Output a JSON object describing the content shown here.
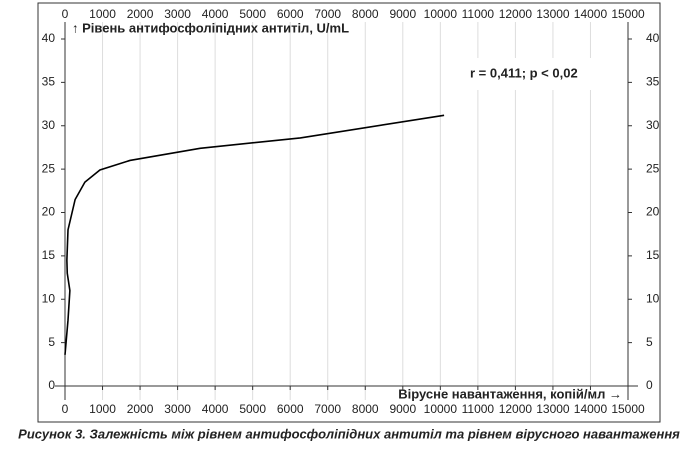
{
  "chart_data": {
    "type": "line",
    "y_label": "↑ Рівень антифосфоліпідних антитіл, U/mL",
    "x_label": "Вірусне навантаження, копій/мл →",
    "annotation": "r = 0,411; p < 0,02",
    "caption": "Рисунок 3. Залежність між рівнем антифосфоліпідних антитіл та рівнем вірусного навантаження",
    "x": [
      0,
      80,
      130,
      60,
      50,
      80,
      270,
      530,
      930,
      1730,
      3600,
      6270,
      10100
    ],
    "series": [
      {
        "color": "#000000",
        "values": [
          3.6,
          7.6,
          11,
          13,
          14.5,
          18,
          21.5,
          23.5,
          24.9,
          26,
          27.4,
          28.6,
          31.2
        ]
      }
    ],
    "xlim": [
      0,
      15000
    ],
    "xticks": [
      0,
      1000,
      2000,
      3000,
      4000,
      5000,
      6000,
      7000,
      8000,
      9000,
      10000,
      11000,
      12000,
      13000,
      14000,
      15000
    ],
    "ylim": [
      0,
      40
    ],
    "yticks": [
      0,
      5,
      10,
      15,
      20,
      25,
      30,
      35,
      40
    ],
    "grid": true
  }
}
